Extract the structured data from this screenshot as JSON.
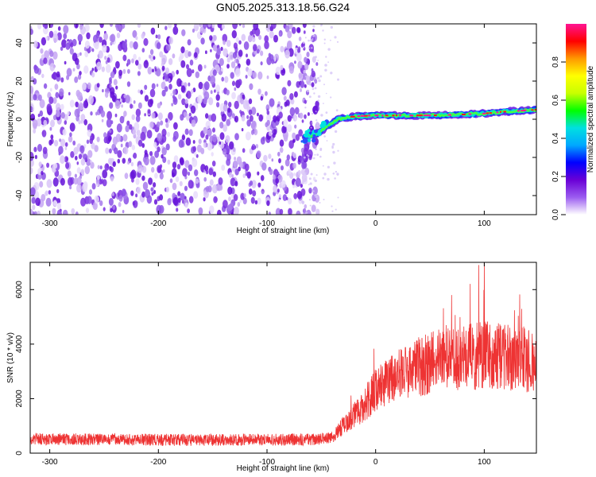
{
  "title": "GN05.2025.313.18.56.G24",
  "chart_data": [
    {
      "type": "heatmap",
      "name": "spectrogram",
      "xlabel": "Height of straight line (km)",
      "ylabel": "Frequency (Hz)",
      "xlim": [
        -318,
        148
      ],
      "ylim": [
        -50,
        50
      ],
      "xticks": [
        -300,
        -200,
        -100,
        0,
        100
      ],
      "xtick_labels": [
        "-300",
        "-200",
        "-100",
        "0",
        "100"
      ],
      "yticks": [
        -40,
        -20,
        0,
        20,
        40
      ],
      "ytick_labels": [
        "-40",
        "-20",
        "0",
        "20",
        "40"
      ],
      "noise_region_x": [
        -318,
        -60
      ],
      "signal_ridge": {
        "x": [
          -65,
          -55,
          -45,
          -35,
          -20,
          0,
          20,
          50,
          80,
          100,
          120,
          148
        ],
        "freq": [
          -9,
          -8,
          -4,
          0,
          1.5,
          2,
          2,
          2,
          2.5,
          3,
          4,
          5
        ]
      },
      "colorbar": {
        "label": "Normalized spectral amplitude",
        "range": [
          0.0,
          1.0
        ],
        "ticks": [
          0.0,
          0.2,
          0.4,
          0.6,
          0.8
        ],
        "tick_labels": [
          "0.0",
          "0.2",
          "0.4",
          "0.6",
          "0.8"
        ],
        "colors": [
          "#ffffff",
          "#9b5cf0",
          "#6a00d6",
          "#0000ff",
          "#00a8ff",
          "#00e0e0",
          "#00ff00",
          "#c8ff00",
          "#ffff00",
          "#ff9900",
          "#ff0000",
          "#ff1493"
        ]
      }
    },
    {
      "type": "line",
      "name": "snr",
      "xlabel": "Height of straight line (km)",
      "ylabel": "SNR (10 * v/v)",
      "xlim": [
        -318,
        148
      ],
      "ylim": [
        0,
        7000
      ],
      "xticks": [
        -300,
        -200,
        -100,
        0,
        100
      ],
      "xtick_labels": [
        "-300",
        "-200",
        "-100",
        "0",
        "100"
      ],
      "yticks": [
        0,
        2000,
        4000,
        6000
      ],
      "ytick_labels": [
        "0",
        "2000",
        "4000",
        "6000"
      ],
      "color": "#ee3333",
      "trend": {
        "x": [
          -318,
          -250,
          -150,
          -60,
          -40,
          -30,
          -20,
          -10,
          0,
          20,
          40,
          60,
          80,
          100,
          120,
          148
        ],
        "y": [
          520,
          500,
          480,
          500,
          550,
          1000,
          1400,
          1800,
          2300,
          2800,
          3200,
          3400,
          3500,
          3600,
          3500,
          3400
        ]
      },
      "noise_amplitude_fraction": 0.35,
      "peak": {
        "x": 95,
        "y": 6900
      }
    }
  ]
}
